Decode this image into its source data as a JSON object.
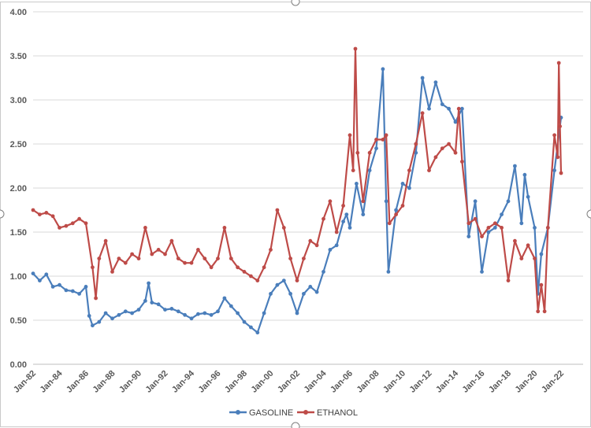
{
  "chart_data": {
    "type": "line",
    "title": "",
    "xlabel": "",
    "ylabel": "",
    "ylim": [
      0,
      4
    ],
    "xlim": [
      "Jan-82",
      "Jan-22"
    ],
    "grid": true,
    "legend_position": "bottom",
    "y_ticks": [
      "0.00",
      "0.50",
      "1.00",
      "1.50",
      "2.00",
      "2.50",
      "3.00",
      "3.50",
      "4.00"
    ],
    "x_ticks": [
      "Jan-82",
      "Jan-84",
      "Jan-86",
      "Jan-88",
      "Jan-90",
      "Jan-92",
      "Jan-94",
      "Jan-96",
      "Jan-98",
      "Jan-00",
      "Jan-02",
      "Jan-04",
      "Jan-06",
      "Jan-08",
      "Jan-10",
      "Jan-12",
      "Jan-14",
      "Jan-16",
      "Jan-18",
      "Jan-20",
      "Jan-22"
    ],
    "series": [
      {
        "name": "GASOLINE",
        "color": "#4a7ebb",
        "points": [
          [
            "Jan-82",
            1.03
          ],
          [
            "Jul-82",
            0.95
          ],
          [
            "Jan-83",
            1.02
          ],
          [
            "Jul-83",
            0.88
          ],
          [
            "Jan-84",
            0.9
          ],
          [
            "Jul-84",
            0.84
          ],
          [
            "Jan-85",
            0.83
          ],
          [
            "Jul-85",
            0.8
          ],
          [
            "Jan-86",
            0.88
          ],
          [
            "Apr-86",
            0.55
          ],
          [
            "Jul-86",
            0.44
          ],
          [
            "Jan-87",
            0.48
          ],
          [
            "Jul-87",
            0.58
          ],
          [
            "Jan-88",
            0.52
          ],
          [
            "Jul-88",
            0.56
          ],
          [
            "Jan-89",
            0.6
          ],
          [
            "Jul-89",
            0.58
          ],
          [
            "Jan-90",
            0.62
          ],
          [
            "Jul-90",
            0.72
          ],
          [
            "Oct-90",
            0.92
          ],
          [
            "Jan-91",
            0.7
          ],
          [
            "Jul-91",
            0.68
          ],
          [
            "Jan-92",
            0.62
          ],
          [
            "Jul-92",
            0.63
          ],
          [
            "Jan-93",
            0.6
          ],
          [
            "Jul-93",
            0.56
          ],
          [
            "Jan-94",
            0.52
          ],
          [
            "Jul-94",
            0.57
          ],
          [
            "Jan-95",
            0.58
          ],
          [
            "Jul-95",
            0.56
          ],
          [
            "Jan-96",
            0.6
          ],
          [
            "Jul-96",
            0.75
          ],
          [
            "Jan-97",
            0.66
          ],
          [
            "Jul-97",
            0.58
          ],
          [
            "Jan-98",
            0.48
          ],
          [
            "Jul-98",
            0.42
          ],
          [
            "Jan-99",
            0.36
          ],
          [
            "Jul-99",
            0.58
          ],
          [
            "Jan-00",
            0.8
          ],
          [
            "Jul-00",
            0.9
          ],
          [
            "Jan-01",
            0.95
          ],
          [
            "Jul-01",
            0.8
          ],
          [
            "Jan-02",
            0.58
          ],
          [
            "Jul-02",
            0.8
          ],
          [
            "Jan-03",
            0.88
          ],
          [
            "Jul-03",
            0.82
          ],
          [
            "Jan-04",
            1.05
          ],
          [
            "Jul-04",
            1.3
          ],
          [
            "Jan-05",
            1.35
          ],
          [
            "Jul-05",
            1.62
          ],
          [
            "Oct-05",
            1.7
          ],
          [
            "Jan-06",
            1.55
          ],
          [
            "Jul-06",
            2.05
          ],
          [
            "Jan-07",
            1.7
          ],
          [
            "Jul-07",
            2.2
          ],
          [
            "Jan-08",
            2.45
          ],
          [
            "Jul-08",
            3.35
          ],
          [
            "Oct-08",
            1.85
          ],
          [
            "Dec-08",
            1.05
          ],
          [
            "Jul-09",
            1.75
          ],
          [
            "Jan-10",
            2.05
          ],
          [
            "Jul-10",
            2.0
          ],
          [
            "Jan-11",
            2.4
          ],
          [
            "Jul-11",
            3.25
          ],
          [
            "Jan-12",
            2.9
          ],
          [
            "Jul-12",
            3.2
          ],
          [
            "Jan-13",
            2.95
          ],
          [
            "Jul-13",
            2.9
          ],
          [
            "Jan-14",
            2.75
          ],
          [
            "Jul-14",
            2.9
          ],
          [
            "Jan-15",
            1.45
          ],
          [
            "Jul-15",
            1.85
          ],
          [
            "Jan-16",
            1.05
          ],
          [
            "Jul-16",
            1.5
          ],
          [
            "Jan-17",
            1.55
          ],
          [
            "Jul-17",
            1.7
          ],
          [
            "Jan-18",
            1.85
          ],
          [
            "Jul-18",
            2.25
          ],
          [
            "Jan-19",
            1.6
          ],
          [
            "Apr-19",
            2.15
          ],
          [
            "Jul-19",
            1.9
          ],
          [
            "Jan-20",
            1.55
          ],
          [
            "Apr-20",
            0.8
          ],
          [
            "Jul-20",
            1.25
          ],
          [
            "Jan-21",
            1.55
          ],
          [
            "Jul-21",
            2.2
          ],
          [
            "Jan-22",
            2.8
          ]
        ]
      },
      {
        "name": "ETHANOL",
        "color": "#be4b48",
        "points": [
          [
            "Jan-82",
            1.75
          ],
          [
            "Jul-82",
            1.7
          ],
          [
            "Jan-83",
            1.72
          ],
          [
            "Jul-83",
            1.68
          ],
          [
            "Jan-84",
            1.55
          ],
          [
            "Jul-84",
            1.57
          ],
          [
            "Jan-85",
            1.6
          ],
          [
            "Jul-85",
            1.65
          ],
          [
            "Jan-86",
            1.6
          ],
          [
            "Jul-86",
            1.1
          ],
          [
            "Oct-86",
            0.75
          ],
          [
            "Jan-87",
            1.2
          ],
          [
            "Jul-87",
            1.4
          ],
          [
            "Jan-88",
            1.05
          ],
          [
            "Jul-88",
            1.2
          ],
          [
            "Jan-89",
            1.15
          ],
          [
            "Jul-89",
            1.25
          ],
          [
            "Jan-90",
            1.2
          ],
          [
            "Jul-90",
            1.55
          ],
          [
            "Jan-91",
            1.25
          ],
          [
            "Jul-91",
            1.3
          ],
          [
            "Jan-92",
            1.25
          ],
          [
            "Jul-92",
            1.4
          ],
          [
            "Jan-93",
            1.2
          ],
          [
            "Jul-93",
            1.15
          ],
          [
            "Jan-94",
            1.15
          ],
          [
            "Jul-94",
            1.3
          ],
          [
            "Jan-95",
            1.2
          ],
          [
            "Jul-95",
            1.1
          ],
          [
            "Jan-96",
            1.2
          ],
          [
            "Jul-96",
            1.55
          ],
          [
            "Jan-97",
            1.2
          ],
          [
            "Jul-97",
            1.1
          ],
          [
            "Jan-98",
            1.05
          ],
          [
            "Jul-98",
            1.0
          ],
          [
            "Jan-99",
            0.95
          ],
          [
            "Jul-99",
            1.1
          ],
          [
            "Jan-00",
            1.3
          ],
          [
            "Jul-00",
            1.75
          ],
          [
            "Jan-01",
            1.55
          ],
          [
            "Jul-01",
            1.2
          ],
          [
            "Jan-02",
            0.95
          ],
          [
            "Jul-02",
            1.2
          ],
          [
            "Jan-03",
            1.4
          ],
          [
            "Jul-03",
            1.35
          ],
          [
            "Jan-04",
            1.65
          ],
          [
            "Jul-04",
            1.85
          ],
          [
            "Jan-05",
            1.5
          ],
          [
            "Jul-05",
            1.8
          ],
          [
            "Jan-06",
            2.6
          ],
          [
            "Apr-06",
            2.2
          ],
          [
            "Jun-06",
            3.58
          ],
          [
            "Aug-06",
            2.4
          ],
          [
            "Jan-07",
            1.85
          ],
          [
            "Jul-07",
            2.4
          ],
          [
            "Jan-08",
            2.55
          ],
          [
            "Jul-08",
            2.55
          ],
          [
            "Oct-08",
            2.6
          ],
          [
            "Jan-09",
            1.6
          ],
          [
            "Jul-09",
            1.7
          ],
          [
            "Jan-10",
            1.8
          ],
          [
            "Jul-10",
            2.2
          ],
          [
            "Jan-11",
            2.5
          ],
          [
            "Jul-11",
            2.85
          ],
          [
            "Jan-12",
            2.2
          ],
          [
            "Jul-12",
            2.35
          ],
          [
            "Jan-13",
            2.45
          ],
          [
            "Jul-13",
            2.5
          ],
          [
            "Jan-14",
            2.4
          ],
          [
            "Apr-14",
            2.9
          ],
          [
            "Jul-14",
            2.3
          ],
          [
            "Jan-15",
            1.6
          ],
          [
            "Jul-15",
            1.65
          ],
          [
            "Jan-16",
            1.45
          ],
          [
            "Jul-16",
            1.55
          ],
          [
            "Jan-17",
            1.6
          ],
          [
            "Jul-17",
            1.55
          ],
          [
            "Jan-18",
            0.95
          ],
          [
            "Jul-18",
            1.4
          ],
          [
            "Jan-19",
            1.2
          ],
          [
            "Jul-19",
            1.35
          ],
          [
            "Jan-20",
            1.2
          ],
          [
            "Apr-20",
            0.6
          ],
          [
            "Jul-20",
            0.9
          ],
          [
            "Oct-20",
            0.6
          ],
          [
            "Jan-21",
            1.55
          ],
          [
            "Jul-21",
            2.6
          ],
          [
            "Oct-21",
            2.35
          ],
          [
            "Nov-21",
            3.42
          ],
          [
            "Dec-21",
            2.7
          ],
          [
            "Jan-22",
            2.17
          ]
        ]
      }
    ]
  }
}
